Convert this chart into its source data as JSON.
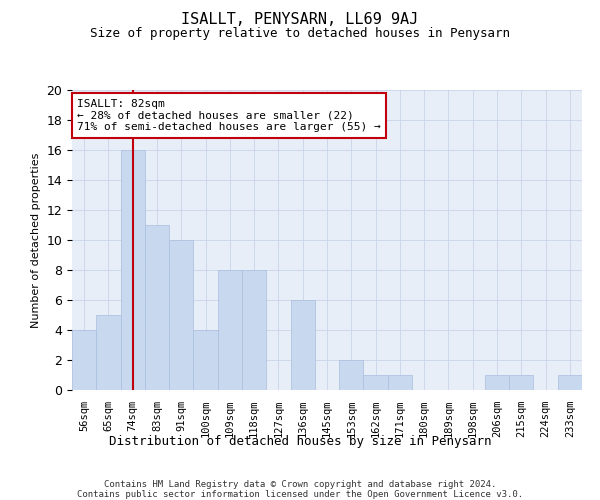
{
  "title": "ISALLT, PENYSARN, LL69 9AJ",
  "subtitle": "Size of property relative to detached houses in Penysarn",
  "xlabel": "Distribution of detached houses by size in Penysarn",
  "ylabel": "Number of detached properties",
  "categories": [
    "56sqm",
    "65sqm",
    "74sqm",
    "83sqm",
    "91sqm",
    "100sqm",
    "109sqm",
    "118sqm",
    "127sqm",
    "136sqm",
    "145sqm",
    "153sqm",
    "162sqm",
    "171sqm",
    "180sqm",
    "189sqm",
    "198sqm",
    "206sqm",
    "215sqm",
    "224sqm",
    "233sqm"
  ],
  "values": [
    4,
    5,
    16,
    11,
    10,
    4,
    8,
    8,
    0,
    6,
    0,
    2,
    1,
    1,
    0,
    0,
    0,
    1,
    1,
    0,
    1
  ],
  "bar_color_default": "#c8d8ef",
  "bar_edge_color": "#a8bedd",
  "highlight_line_color": "#c0000c",
  "highlight_index": 2,
  "ylim": [
    0,
    20
  ],
  "yticks": [
    0,
    2,
    4,
    6,
    8,
    10,
    12,
    14,
    16,
    18,
    20
  ],
  "annotation_text": "ISALLT: 82sqm\n← 28% of detached houses are smaller (22)\n71% of semi-detached houses are larger (55) →",
  "annotation_box_color": "#c0000c",
  "grid_color": "#c8d4e8",
  "bg_color": "#e8eef8",
  "footer_line1": "Contains HM Land Registry data © Crown copyright and database right 2024.",
  "footer_line2": "Contains public sector information licensed under the Open Government Licence v3.0."
}
